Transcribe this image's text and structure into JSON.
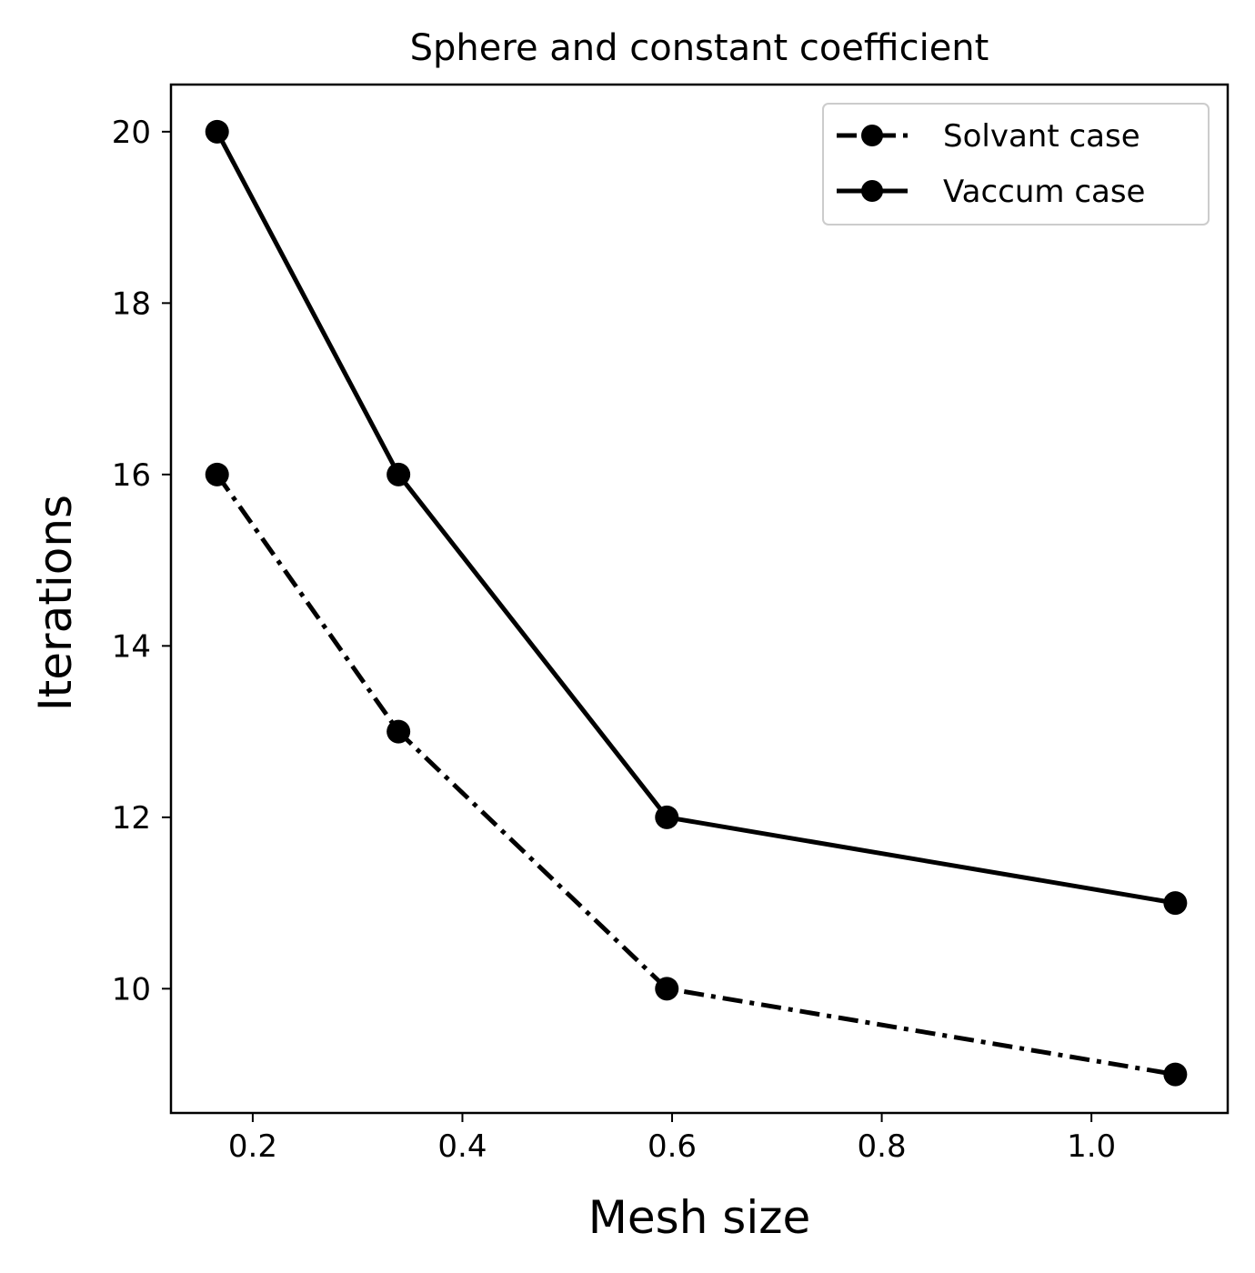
{
  "chart_data": {
    "type": "line",
    "title": "Sphere and constant coefficient",
    "xlabel": "Mesh size",
    "ylabel": "Iterations",
    "xlim": [
      0.122,
      1.13
    ],
    "ylim": [
      8.55,
      20.55
    ],
    "xticks": [
      {
        "value": 0.2,
        "label": "0.2"
      },
      {
        "value": 0.4,
        "label": "0.4"
      },
      {
        "value": 0.6,
        "label": "0.6"
      },
      {
        "value": 0.8,
        "label": "0.8"
      },
      {
        "value": 1.0,
        "label": "1.0"
      }
    ],
    "yticks": [
      {
        "value": 10,
        "label": "10"
      },
      {
        "value": 12,
        "label": "12"
      },
      {
        "value": 14,
        "label": "14"
      },
      {
        "value": 16,
        "label": "16"
      },
      {
        "value": 18,
        "label": "18"
      },
      {
        "value": 20,
        "label": "20"
      }
    ],
    "grid": false,
    "legend": "top-right",
    "series": [
      {
        "name": "Solvant case",
        "style": "dash-dot",
        "color": "#000000",
        "x": [
          0.166,
          0.339,
          0.595,
          1.08
        ],
        "y": [
          16,
          13,
          10,
          9
        ]
      },
      {
        "name": "Vaccum case",
        "style": "solid",
        "color": "#000000",
        "x": [
          0.166,
          0.339,
          0.595,
          1.08
        ],
        "y": [
          20,
          16,
          12,
          11
        ]
      }
    ]
  }
}
